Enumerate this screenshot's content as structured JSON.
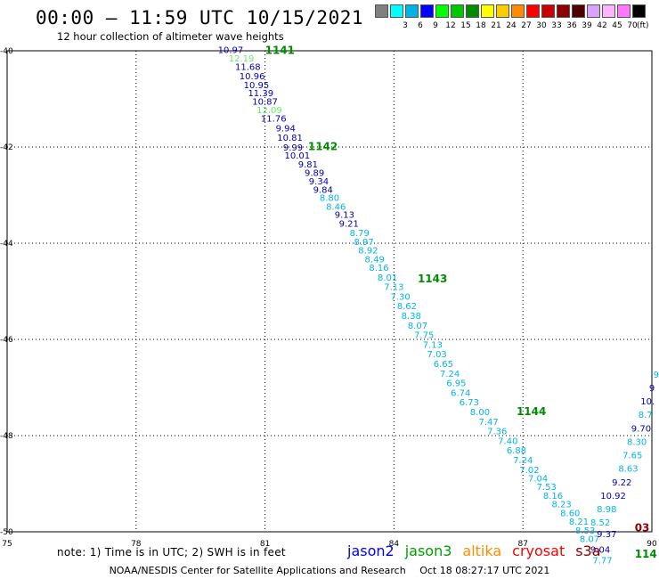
{
  "header": {
    "title": "00:00 – 11:59 UTC 10/15/2021",
    "subtitle": "12 hour collection of altimeter wave heights"
  },
  "legend": {
    "unit": "(ft)",
    "items": [
      {
        "label": "",
        "color": "#808080"
      },
      {
        "label": "3",
        "color": "#00ffff"
      },
      {
        "label": "6",
        "color": "#00b4e8"
      },
      {
        "label": "9",
        "color": "#0000ff"
      },
      {
        "label": "12",
        "color": "#00ff00"
      },
      {
        "label": "15",
        "color": "#00c800"
      },
      {
        "label": "18",
        "color": "#008c00"
      },
      {
        "label": "21",
        "color": "#ffff00"
      },
      {
        "label": "24",
        "color": "#ffcc00"
      },
      {
        "label": "27",
        "color": "#ff8c00"
      },
      {
        "label": "30",
        "color": "#ff0000"
      },
      {
        "label": "33",
        "color": "#c80000"
      },
      {
        "label": "36",
        "color": "#8c0000"
      },
      {
        "label": "39",
        "color": "#500000"
      },
      {
        "label": "42",
        "color": "#dca0ff"
      },
      {
        "label": "45",
        "color": "#ffb4ff"
      },
      {
        "label": "70",
        "color": "#ff78ff"
      },
      {
        "label": "",
        "color": "#000000"
      }
    ]
  },
  "chart_data": {
    "type": "scatter",
    "title": "00:00 – 11:59 UTC 10/15/2021",
    "subtitle": "12 hour collection of altimeter wave heights",
    "xlim": [
      75,
      90
    ],
    "ylim": [
      -50,
      -40
    ],
    "x_ticks": [
      "75",
      "78",
      "81",
      "84",
      "87",
      "90"
    ],
    "y_ticks": [
      "-40",
      "-42",
      "-44",
      "-46",
      "-48",
      "-50"
    ],
    "grid": true,
    "colors": {
      "c3": "#00b4e8",
      "c9": "#0000b4",
      "c12": "#66ee66",
      "c15": "#008c00",
      "c33": "#8c0000"
    },
    "swh_points": [
      {
        "x": 80.2,
        "y": -39.97,
        "v": "10.97",
        "c": "c9"
      },
      {
        "x": 80.45,
        "y": -40.15,
        "v": "12.19",
        "c": "c12"
      },
      {
        "x": 80.6,
        "y": -40.32,
        "v": "11.68",
        "c": "c9"
      },
      {
        "x": 80.7,
        "y": -40.52,
        "v": "10.96",
        "c": "c9"
      },
      {
        "x": 80.8,
        "y": -40.7,
        "v": "10.95",
        "c": "c9"
      },
      {
        "x": 80.9,
        "y": -40.87,
        "v": "11.39",
        "c": "c9"
      },
      {
        "x": 81.0,
        "y": -41.05,
        "v": "10.87",
        "c": "c9"
      },
      {
        "x": 81.1,
        "y": -41.22,
        "v": "12.09",
        "c": "c12"
      },
      {
        "x": 81.2,
        "y": -41.4,
        "v": "11.76",
        "c": "c9"
      },
      {
        "x": 81.48,
        "y": -41.6,
        "v": "9.94",
        "c": "c9"
      },
      {
        "x": 81.58,
        "y": -41.8,
        "v": "10.81",
        "c": "c9"
      },
      {
        "x": 81.65,
        "y": -42.0,
        "v": "9.99",
        "c": "c9"
      },
      {
        "x": 81.75,
        "y": -42.17,
        "v": "10.01",
        "c": "c9"
      },
      {
        "x": 82.0,
        "y": -42.35,
        "v": "9.81",
        "c": "c9"
      },
      {
        "x": 82.15,
        "y": -42.53,
        "v": "9.89",
        "c": "c9"
      },
      {
        "x": 82.25,
        "y": -42.7,
        "v": "9.34",
        "c": "c9"
      },
      {
        "x": 82.35,
        "y": -42.88,
        "v": "9.84",
        "c": "c9"
      },
      {
        "x": 82.5,
        "y": -43.05,
        "v": "8.80",
        "c": "c3"
      },
      {
        "x": 82.65,
        "y": -43.23,
        "v": "8.46",
        "c": "c3"
      },
      {
        "x": 82.85,
        "y": -43.4,
        "v": "9.13",
        "c": "c9"
      },
      {
        "x": 82.95,
        "y": -43.58,
        "v": "9.21",
        "c": "c9"
      },
      {
        "x": 83.2,
        "y": -43.78,
        "v": "8.79",
        "c": "c3"
      },
      {
        "x": 83.3,
        "y": -43.96,
        "v": "8.97",
        "c": "c3"
      },
      {
        "x": 83.4,
        "y": -44.14,
        "v": "8.92",
        "c": "c3"
      },
      {
        "x": 83.55,
        "y": -44.32,
        "v": "8.49",
        "c": "c3"
      },
      {
        "x": 83.65,
        "y": -44.5,
        "v": "8.16",
        "c": "c3"
      },
      {
        "x": 83.85,
        "y": -44.7,
        "v": "8.01",
        "c": "c3"
      },
      {
        "x": 84.0,
        "y": -44.9,
        "v": "7.13",
        "c": "c3"
      },
      {
        "x": 84.15,
        "y": -45.1,
        "v": "7.30",
        "c": "c3"
      },
      {
        "x": 84.3,
        "y": -45.3,
        "v": "8.62",
        "c": "c3"
      },
      {
        "x": 84.4,
        "y": -45.5,
        "v": "8.38",
        "c": "c3"
      },
      {
        "x": 84.55,
        "y": -45.7,
        "v": "8.07",
        "c": "c3"
      },
      {
        "x": 84.7,
        "y": -45.9,
        "v": "7.75",
        "c": "c3"
      },
      {
        "x": 84.9,
        "y": -46.1,
        "v": "7.13",
        "c": "c3"
      },
      {
        "x": 85.0,
        "y": -46.3,
        "v": "7.03",
        "c": "c3"
      },
      {
        "x": 85.15,
        "y": -46.5,
        "v": "6.65",
        "c": "c3"
      },
      {
        "x": 85.3,
        "y": -46.7,
        "v": "7.24",
        "c": "c3"
      },
      {
        "x": 85.45,
        "y": -46.9,
        "v": "6.95",
        "c": "c3"
      },
      {
        "x": 85.55,
        "y": -47.1,
        "v": "6.74",
        "c": "c3"
      },
      {
        "x": 85.75,
        "y": -47.3,
        "v": "6.73",
        "c": "c3"
      },
      {
        "x": 86.0,
        "y": -47.5,
        "v": "8.00",
        "c": "c3"
      },
      {
        "x": 86.2,
        "y": -47.7,
        "v": "7.47",
        "c": "c3"
      },
      {
        "x": 86.4,
        "y": -47.9,
        "v": "7.36",
        "c": "c3"
      },
      {
        "x": 86.65,
        "y": -48.1,
        "v": "7.40",
        "c": "c3"
      },
      {
        "x": 86.85,
        "y": -48.3,
        "v": "6.88",
        "c": "c3"
      },
      {
        "x": 87.0,
        "y": -48.5,
        "v": "7.24",
        "c": "c3"
      },
      {
        "x": 87.15,
        "y": -48.7,
        "v": "7.02",
        "c": "c3"
      },
      {
        "x": 87.35,
        "y": -48.88,
        "v": "7.04",
        "c": "c3"
      },
      {
        "x": 87.55,
        "y": -49.06,
        "v": "7.53",
        "c": "c3"
      },
      {
        "x": 87.7,
        "y": -49.24,
        "v": "8.16",
        "c": "c3"
      },
      {
        "x": 87.9,
        "y": -49.42,
        "v": "8.23",
        "c": "c3"
      },
      {
        "x": 88.1,
        "y": -49.6,
        "v": "8.60",
        "c": "c3"
      },
      {
        "x": 88.3,
        "y": -49.78,
        "v": "8.21",
        "c": "c3"
      },
      {
        "x": 88.45,
        "y": -49.96,
        "v": "8.53",
        "c": "c3"
      },
      {
        "x": 88.55,
        "y": -50.14,
        "v": "8.07",
        "c": "c3"
      },
      {
        "x": 88.8,
        "y": -50.36,
        "v": "9.04",
        "c": "c9"
      },
      {
        "x": 88.85,
        "y": -50.58,
        "v": "7.77",
        "c": "c3"
      },
      {
        "x": 88.95,
        "y": -50.04,
        "v": "9.37",
        "c": "c9"
      },
      {
        "x": 88.8,
        "y": -49.8,
        "v": "8.52",
        "c": "c3"
      },
      {
        "x": 88.95,
        "y": -49.52,
        "v": "8.98",
        "c": "c3"
      },
      {
        "x": 89.1,
        "y": -49.24,
        "v": "10.92",
        "c": "c9"
      },
      {
        "x": 89.3,
        "y": -48.96,
        "v": "9.22",
        "c": "c9"
      },
      {
        "x": 89.45,
        "y": -48.68,
        "v": "8.63",
        "c": "c3"
      },
      {
        "x": 89.55,
        "y": -48.4,
        "v": "7.65",
        "c": "c3"
      },
      {
        "x": 89.65,
        "y": -48.12,
        "v": "8.30",
        "c": "c3"
      },
      {
        "x": 89.75,
        "y": -47.84,
        "v": "9.70",
        "c": "c9"
      },
      {
        "x": 89.85,
        "y": -47.56,
        "v": "8.7",
        "c": "c3"
      },
      {
        "x": 89.9,
        "y": -47.28,
        "v": "10.",
        "c": "c9"
      },
      {
        "x": 90.0,
        "y": -47.0,
        "v": "9",
        "c": "c9"
      },
      {
        "x": 90.1,
        "y": -46.72,
        "v": "9",
        "c": "c3"
      }
    ],
    "pass_labels": [
      {
        "x": 81.0,
        "y": -39.97,
        "v": "1141",
        "c": "c15"
      },
      {
        "x": 82.0,
        "y": -41.97,
        "v": "1142",
        "c": "c15"
      },
      {
        "x": 84.55,
        "y": -44.72,
        "v": "1143",
        "c": "c15"
      },
      {
        "x": 86.85,
        "y": -47.48,
        "v": "1144",
        "c": "c15"
      },
      {
        "x": 89.6,
        "y": -49.9,
        "v": "03",
        "c": "c33"
      },
      {
        "x": 89.6,
        "y": -50.44,
        "v": "114",
        "c": "c15"
      }
    ]
  },
  "notes": {
    "text": "note:  1) Time is in UTC;  2) SWH is in feet"
  },
  "satellites": [
    {
      "name": "jason2",
      "color": "#0000ff"
    },
    {
      "name": "jason3",
      "color": "#00a000"
    },
    {
      "name": "altika",
      "color": "#ff8c00"
    },
    {
      "name": "cryosat",
      "color": "#ff0000"
    },
    {
      "name": "s3a",
      "color": "#8c0000"
    }
  ],
  "footer": {
    "credit": "NOAA/NESDIS Center for Satellite Applications and Research",
    "timestamp": "Oct 18 08:27:17 UTC 2021"
  }
}
